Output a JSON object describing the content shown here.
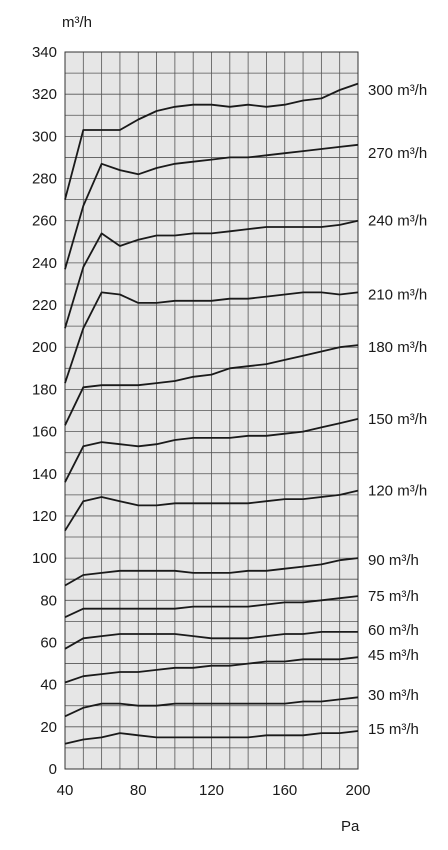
{
  "chart_data": {
    "type": "line",
    "ylabel": "m³/h",
    "xlabel": "Pa",
    "xlim": [
      40,
      200
    ],
    "ylim": [
      0,
      340
    ],
    "xticks": [
      40,
      80,
      120,
      160,
      200
    ],
    "yticks": [
      0,
      20,
      40,
      60,
      80,
      100,
      120,
      140,
      160,
      180,
      200,
      220,
      240,
      260,
      280,
      300,
      320,
      340
    ],
    "grid": true,
    "colors": {
      "background": "#e6e6e6",
      "line": "#1a1a1a",
      "grid": "#555555"
    },
    "series": [
      {
        "name": "300 m³/h",
        "label_at": 322,
        "x": [
          40,
          50,
          60,
          70,
          80,
          90,
          100,
          110,
          120,
          130,
          140,
          150,
          160,
          170,
          180,
          190,
          200
        ],
        "y": [
          270,
          303,
          303,
          303,
          308,
          312,
          314,
          315,
          315,
          314,
          315,
          314,
          315,
          317,
          318,
          322,
          325
        ]
      },
      {
        "name": "270 m³/h",
        "label_at": 292,
        "x": [
          40,
          50,
          60,
          70,
          80,
          90,
          100,
          110,
          120,
          130,
          140,
          150,
          160,
          170,
          180,
          190,
          200
        ],
        "y": [
          237,
          267,
          287,
          284,
          282,
          285,
          287,
          288,
          289,
          290,
          290,
          291,
          292,
          293,
          294,
          295,
          296
        ]
      },
      {
        "name": "240 m³/h",
        "label_at": 260,
        "x": [
          40,
          50,
          60,
          70,
          80,
          90,
          100,
          110,
          120,
          130,
          140,
          150,
          160,
          170,
          180,
          190,
          200
        ],
        "y": [
          209,
          238,
          254,
          248,
          251,
          253,
          253,
          254,
          254,
          255,
          256,
          257,
          257,
          257,
          257,
          258,
          260
        ]
      },
      {
        "name": "210 m³/h",
        "label_at": 225,
        "x": [
          40,
          50,
          60,
          70,
          80,
          90,
          100,
          110,
          120,
          130,
          140,
          150,
          160,
          170,
          180,
          190,
          200
        ],
        "y": [
          183,
          209,
          226,
          225,
          221,
          221,
          222,
          222,
          222,
          223,
          223,
          224,
          225,
          226,
          226,
          225,
          226
        ]
      },
      {
        "name": "180 m³/h",
        "label_at": 200,
        "x": [
          40,
          50,
          60,
          70,
          80,
          90,
          100,
          110,
          120,
          130,
          140,
          150,
          160,
          170,
          180,
          190,
          200
        ],
        "y": [
          163,
          181,
          182,
          182,
          182,
          183,
          184,
          186,
          187,
          190,
          191,
          192,
          194,
          196,
          198,
          200,
          201
        ]
      },
      {
        "name": "150 m³/h",
        "label_at": 166,
        "x": [
          40,
          50,
          60,
          70,
          80,
          90,
          100,
          110,
          120,
          130,
          140,
          150,
          160,
          170,
          180,
          190,
          200
        ],
        "y": [
          136,
          153,
          155,
          154,
          153,
          154,
          156,
          157,
          157,
          157,
          158,
          158,
          159,
          160,
          162,
          164,
          166
        ]
      },
      {
        "name": "120 m³/h",
        "label_at": 132,
        "x": [
          40,
          50,
          60,
          70,
          80,
          90,
          100,
          110,
          120,
          130,
          140,
          150,
          160,
          170,
          180,
          190,
          200
        ],
        "y": [
          113,
          127,
          129,
          127,
          125,
          125,
          126,
          126,
          126,
          126,
          126,
          127,
          128,
          128,
          129,
          130,
          132
        ]
      },
      {
        "name": "90 m³/h",
        "label_at": 99,
        "x": [
          40,
          50,
          60,
          70,
          80,
          90,
          100,
          110,
          120,
          130,
          140,
          150,
          160,
          170,
          180,
          190,
          200
        ],
        "y": [
          87,
          92,
          93,
          94,
          94,
          94,
          94,
          93,
          93,
          93,
          94,
          94,
          95,
          96,
          97,
          99,
          100
        ]
      },
      {
        "name": "75 m³/h",
        "label_at": 82,
        "x": [
          40,
          50,
          60,
          70,
          80,
          90,
          100,
          110,
          120,
          130,
          140,
          150,
          160,
          170,
          180,
          190,
          200
        ],
        "y": [
          72,
          76,
          76,
          76,
          76,
          76,
          76,
          77,
          77,
          77,
          77,
          78,
          79,
          79,
          80,
          81,
          82
        ]
      },
      {
        "name": "60 m³/h",
        "label_at": 66,
        "x": [
          40,
          50,
          60,
          70,
          80,
          90,
          100,
          110,
          120,
          130,
          140,
          150,
          160,
          170,
          180,
          190,
          200
        ],
        "y": [
          57,
          62,
          63,
          64,
          64,
          64,
          64,
          63,
          62,
          62,
          62,
          63,
          64,
          64,
          65,
          65,
          65
        ]
      },
      {
        "name": "45 m³/h",
        "label_at": 54,
        "x": [
          40,
          50,
          60,
          70,
          80,
          90,
          100,
          110,
          120,
          130,
          140,
          150,
          160,
          170,
          180,
          190,
          200
        ],
        "y": [
          41,
          44,
          45,
          46,
          46,
          47,
          48,
          48,
          49,
          49,
          50,
          51,
          51,
          52,
          52,
          52,
          53
        ]
      },
      {
        "name": "30 m³/h",
        "label_at": 35,
        "x": [
          40,
          50,
          60,
          70,
          80,
          90,
          100,
          110,
          120,
          130,
          140,
          150,
          160,
          170,
          180,
          190,
          200
        ],
        "y": [
          25,
          29,
          31,
          31,
          30,
          30,
          31,
          31,
          31,
          31,
          31,
          31,
          31,
          32,
          32,
          33,
          34
        ]
      },
      {
        "name": "15 m³/h",
        "label_at": 19,
        "x": [
          40,
          50,
          60,
          70,
          80,
          90,
          100,
          110,
          120,
          130,
          140,
          150,
          160,
          170,
          180,
          190,
          200
        ],
        "y": [
          12,
          14,
          15,
          17,
          16,
          15,
          15,
          15,
          15,
          15,
          15,
          16,
          16,
          16,
          17,
          17,
          18
        ]
      }
    ]
  }
}
